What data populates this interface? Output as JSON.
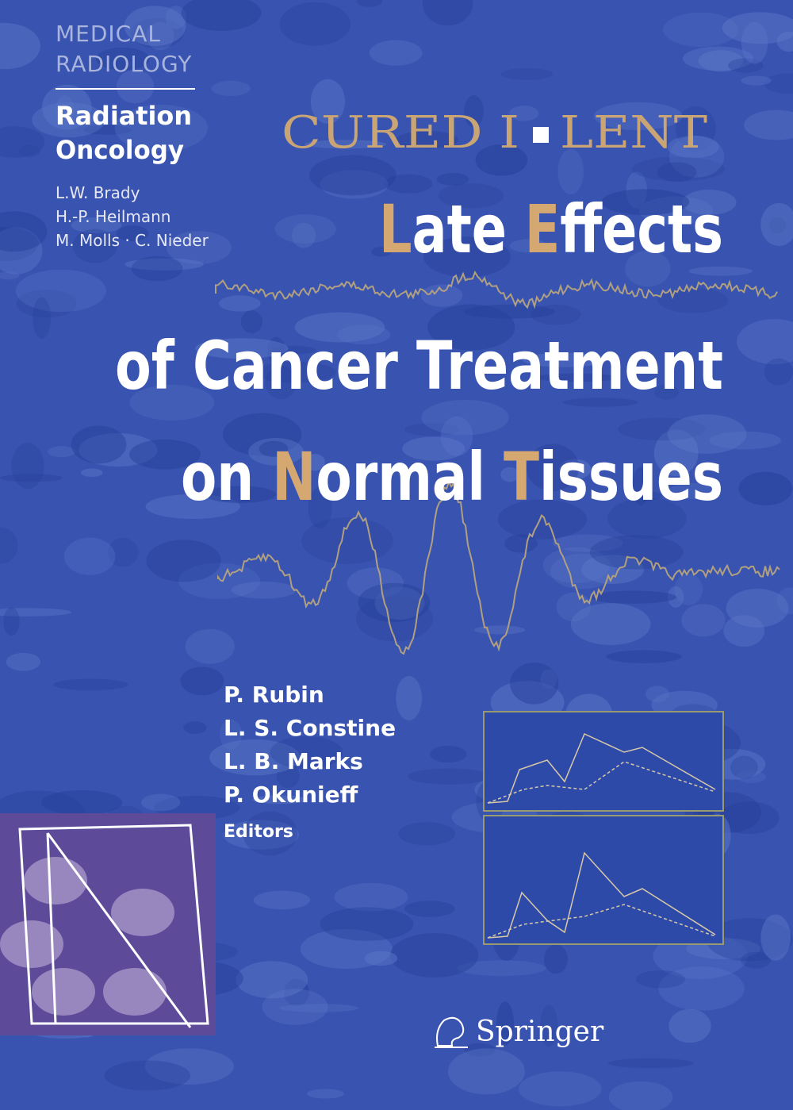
{
  "series": {
    "name": [
      "MEDICAL",
      "RADIOLOGY"
    ],
    "subseries": [
      "Radiation",
      "Oncology"
    ],
    "editors": [
      "L.W. Brady",
      "H.-P. Heilmann",
      "M. Molls · C. Nieder"
    ]
  },
  "project": {
    "left": "CURED I",
    "right": "LENT"
  },
  "title": {
    "lines": [
      [
        {
          "text": "L",
          "accent": true
        },
        {
          "text": "ate ",
          "accent": false
        },
        {
          "text": "E",
          "accent": true
        },
        {
          "text": "ffects",
          "accent": false
        }
      ],
      [
        {
          "text": "of Cancer Treatment",
          "accent": false
        }
      ],
      [
        {
          "text": "on ",
          "accent": false
        },
        {
          "text": "N",
          "accent": true
        },
        {
          "text": "ormal ",
          "accent": false
        },
        {
          "text": "T",
          "accent": true
        },
        {
          "text": "issues",
          "accent": false
        }
      ]
    ]
  },
  "editors": {
    "names": [
      "P. Rubin",
      "L. S. Constine",
      "L. B. Marks",
      "P. Okunieff"
    ],
    "role": "Editors"
  },
  "publisher": "Springer"
}
